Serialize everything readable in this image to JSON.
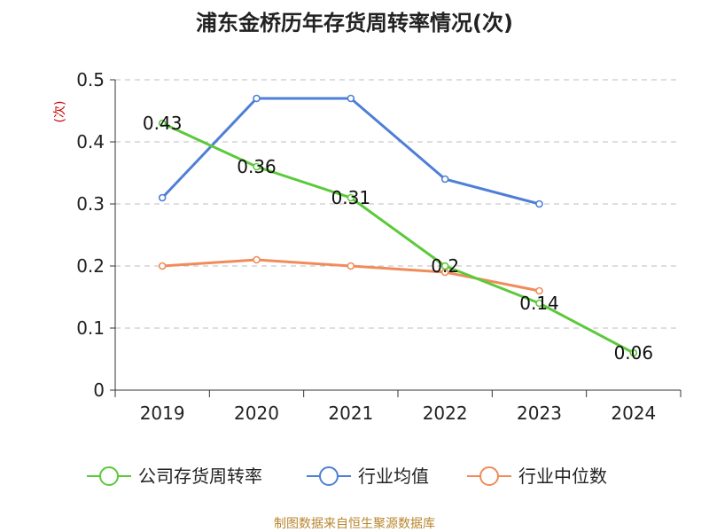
{
  "chart_data": {
    "type": "line",
    "title": "浦东金桥历年存货周转率情况(次)",
    "ylabel": "(次)",
    "xlabel": "",
    "categories": [
      "2019",
      "2020",
      "2021",
      "2022",
      "2023",
      "2024"
    ],
    "ylim": [
      0,
      0.5
    ],
    "yticks": [
      "0",
      "0.1",
      "0.2",
      "0.3",
      "0.4",
      "0.5"
    ],
    "grid": true,
    "legend_position": "bottom",
    "series": [
      {
        "name": "公司存货周转率",
        "color": "#5cc93a",
        "values": [
          0.43,
          0.36,
          0.31,
          0.2,
          0.14,
          0.06
        ],
        "labels": [
          "0.43",
          "0.36",
          "0.31",
          "0.2",
          "0.14",
          "0.06"
        ]
      },
      {
        "name": "行业均值",
        "color": "#4e7fd6",
        "values": [
          0.31,
          0.47,
          0.47,
          0.34,
          0.3,
          null
        ]
      },
      {
        "name": "行业中位数",
        "color": "#f08c5a",
        "values": [
          0.2,
          0.21,
          0.2,
          0.19,
          0.16,
          null
        ]
      }
    ]
  },
  "source": "制图数据来自恒生聚源数据库"
}
